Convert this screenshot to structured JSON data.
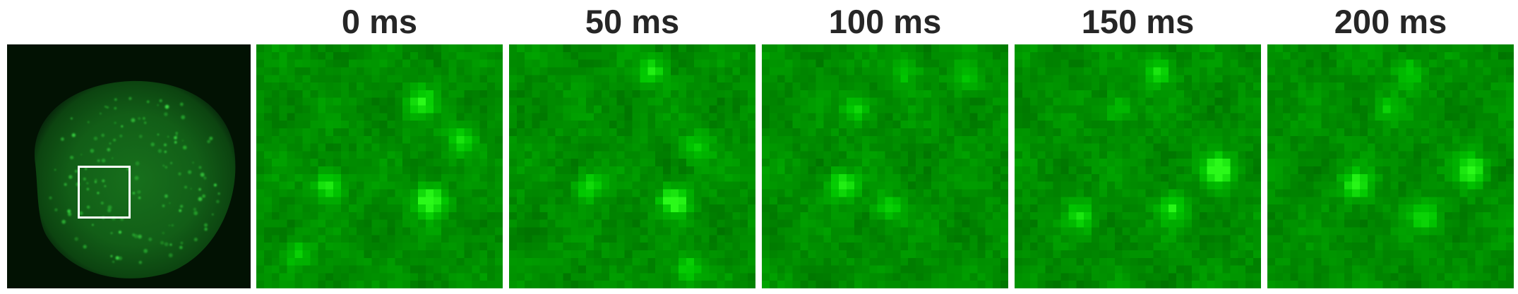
{
  "frames": [
    {
      "label": "0 ms"
    },
    {
      "label": "50 ms"
    },
    {
      "label": "100 ms"
    },
    {
      "label": "150 ms"
    },
    {
      "label": "200 ms"
    }
  ],
  "colors": {
    "background": "#ffffff",
    "label_text": "#262626",
    "fluorescence": "#22c42a",
    "roi_box": "#ffffff"
  },
  "overview": {
    "description_icon": "nucleus-fluorescence-image",
    "roi": "selected-region-box"
  }
}
